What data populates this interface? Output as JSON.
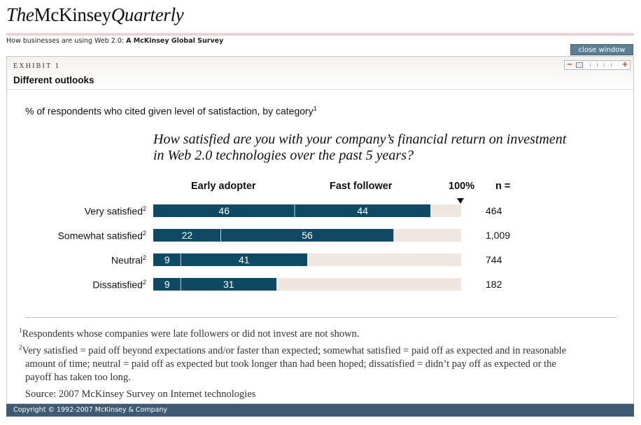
{
  "brand": {
    "the": "The",
    "mckinsey": "McKinsey",
    "quarterly": "Quarterly"
  },
  "survey": {
    "prefix": "How businesses are using Web 2.0: ",
    "name": "A McKinsey Global Survey"
  },
  "close_window": "close window",
  "exhibit": {
    "label": "EXHIBIT 1",
    "title": "Different outlooks"
  },
  "zoom": {
    "minus": "−",
    "plus": "+"
  },
  "chart_data": {
    "type": "bar",
    "orientation": "horizontal",
    "stacked": true,
    "subtitle": "% of respondents who cited given level of satisfaction, by category",
    "subtitle_footnote": "1",
    "title": "How satisfied are you with your company’s financial return on investment in Web 2.0 technologies over the past 5 years?",
    "total_label": "100%",
    "n_label": "n =",
    "xlim": [
      0,
      100
    ],
    "categories": [
      {
        "label": "Very satisfied",
        "footnote": "2",
        "n": "464"
      },
      {
        "label": "Somewhat satisfied",
        "footnote": "2",
        "n": "1,009"
      },
      {
        "label": "Neutral",
        "footnote": "2",
        "n": "744"
      },
      {
        "label": "Dissatisfied",
        "footnote": "2",
        "n": "182"
      }
    ],
    "series": [
      {
        "name": "Early adopter",
        "values": [
          46,
          22,
          9,
          9
        ]
      },
      {
        "name": "Fast follower",
        "values": [
          44,
          56,
          41,
          31
        ]
      }
    ],
    "colors": {
      "bar": "#0d4a63",
      "background": "#efe6df",
      "divider": "#ffffff"
    }
  },
  "notes": {
    "note1_mark": "1",
    "note1": "Respondents whose companies were late followers or did not invest are not shown.",
    "note2_mark": "2",
    "note2": "Very satisfied = paid off beyond expectations and/or faster than expected; somewhat satisfied = paid off as expected and in reasonable amount of time; neutral = paid off as expected but took longer than had been hoped; dissatisfied = didn’t pay off as expected or the payoff has taken too long.",
    "source": "Source: 2007 McKinsey Survey on Internet technologies"
  },
  "footer": "Copyright © 1992-2007 McKinsey & Company"
}
